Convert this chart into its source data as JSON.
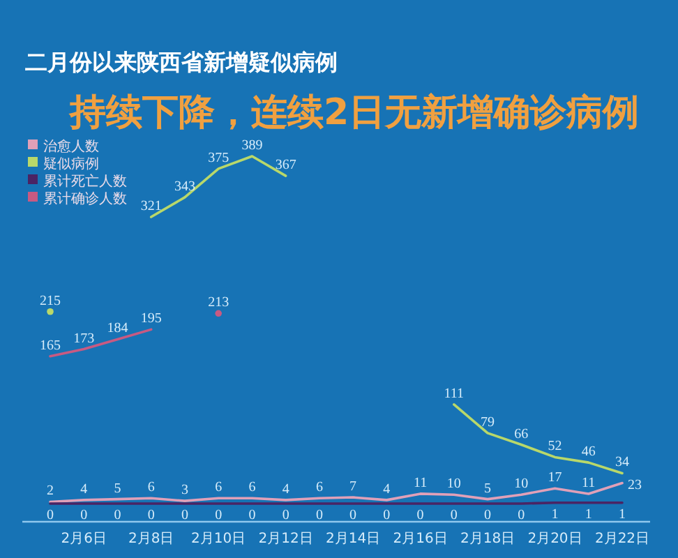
{
  "chart_data": {
    "type": "line",
    "title": "二月份以来陕西省新增疑似病例",
    "subtitle": "持续下降，连续2日无新增确诊病例",
    "categories": [
      null,
      "2月6日",
      null,
      "2月8日",
      null,
      "2月10日",
      null,
      "2月12日",
      null,
      "2月14日",
      null,
      "2月16日",
      null,
      "2月18日",
      null,
      "2月20日",
      null,
      "2月22日"
    ],
    "series": [
      {
        "name": "治愈人数",
        "color": "#e0a0b8",
        "values": [
          2,
          4,
          5,
          6,
          3,
          6,
          6,
          4,
          6,
          7,
          4,
          11,
          10,
          5,
          10,
          17,
          11,
          23
        ]
      },
      {
        "name": "疑似病例",
        "color": "#b8d86a",
        "values": [
          215,
          null,
          null,
          321,
          343,
          375,
          389,
          367,
          null,
          null,
          null,
          null,
          111,
          79,
          66,
          52,
          46,
          34
        ]
      },
      {
        "name": "累计死亡人数",
        "color": "#4a2464",
        "values": [
          0,
          0,
          0,
          0,
          0,
          0,
          0,
          0,
          0,
          0,
          0,
          0,
          0,
          0,
          0,
          1,
          1,
          1
        ]
      },
      {
        "name": "累计确诊人数",
        "color": "#c85a82",
        "values": [
          165,
          173,
          184,
          195,
          null,
          213,
          null,
          null,
          null,
          null,
          null,
          null,
          null,
          null,
          null,
          null,
          null,
          null
        ]
      }
    ],
    "data_labels": true,
    "legend": "top left"
  }
}
